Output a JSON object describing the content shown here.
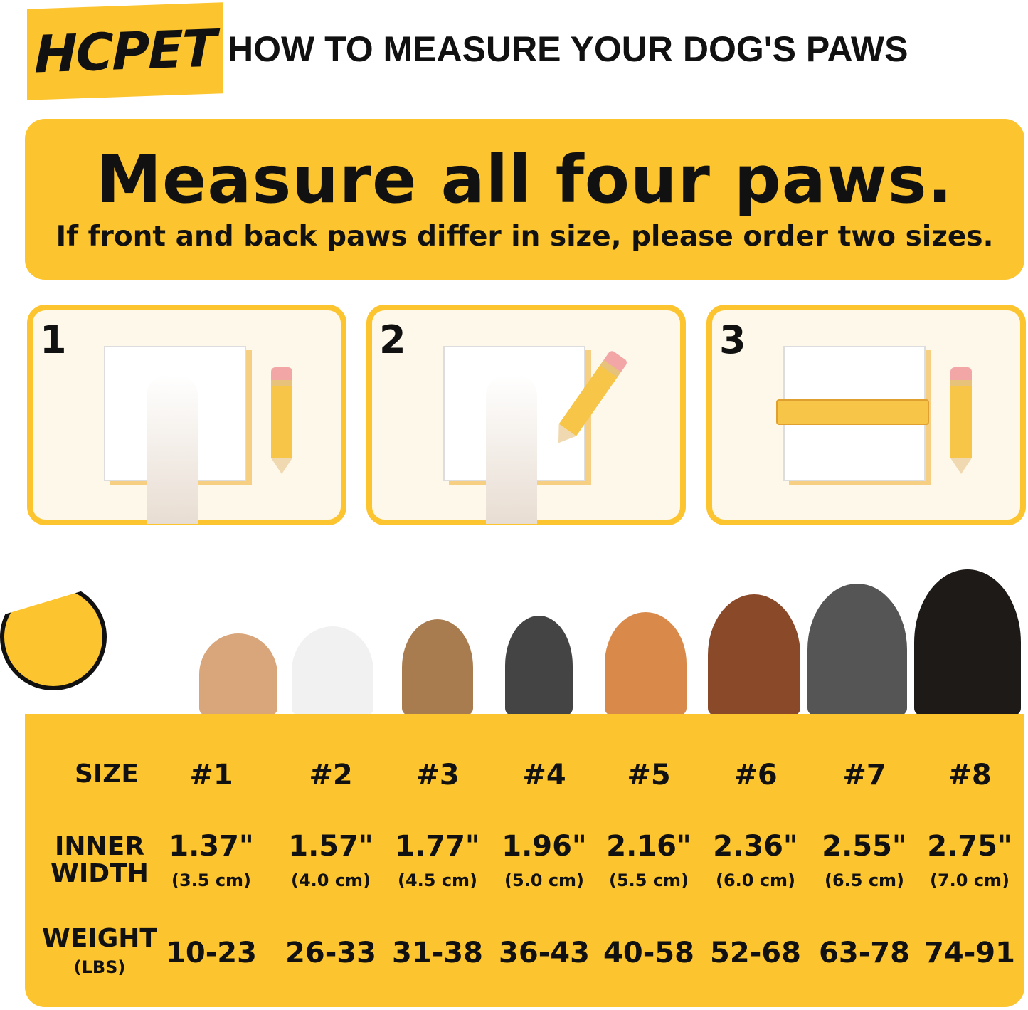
{
  "header": {
    "brand": "HCPET",
    "title": "HOW TO MEASURE YOUR DOG'S PAWS"
  },
  "banner": {
    "headline": "Measure all four paws.",
    "subtext": "If front and back paws differ in size, please order two sizes."
  },
  "steps": [
    {
      "number": "1"
    },
    {
      "number": "2"
    },
    {
      "number": "3"
    }
  ],
  "colors": {
    "accent": "#FCC42E",
    "panel": "#FDF8EA"
  },
  "table": {
    "size_label": "SIZE",
    "width_label": [
      "INNER",
      "WIDTH"
    ],
    "weight_label": "WEIGHT",
    "weight_unit": "(LBS)",
    "sizes": [
      "#1",
      "#2",
      "#3",
      "#4",
      "#5",
      "#6",
      "#7",
      "#8"
    ],
    "width_in": [
      "1.37\"",
      "1.57\"",
      "1.77\"",
      "1.96\"",
      "2.16\"",
      "2.36\"",
      "2.55\"",
      "2.75\""
    ],
    "width_cm": [
      "(3.5 cm)",
      "(4.0 cm)",
      "(4.5 cm)",
      "(5.0 cm)",
      "(5.5 cm)",
      "(6.0 cm)",
      "(6.5 cm)",
      "(7.0 cm)"
    ],
    "weight": [
      "10-23",
      "26-33",
      "31-38",
      "36-43",
      "40-58",
      "52-68",
      "63-78",
      "74-91"
    ]
  }
}
